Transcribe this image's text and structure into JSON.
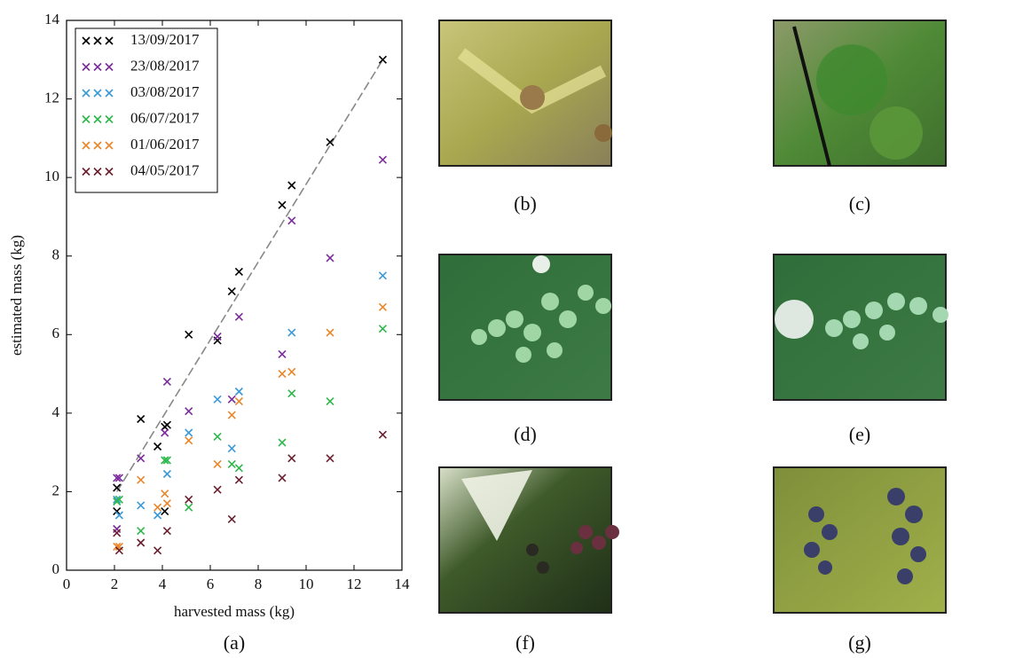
{
  "chart_data": {
    "type": "scatter",
    "xlabel": "harvested mass (kg)",
    "ylabel": "estimated mass (kg)",
    "xlim": [
      0,
      14
    ],
    "ylim": [
      0,
      14
    ],
    "xticks": [
      0,
      2,
      4,
      6,
      8,
      10,
      12,
      14
    ],
    "yticks": [
      0,
      2,
      4,
      6,
      8,
      10,
      12,
      14
    ],
    "legend": "upper left",
    "series": [
      {
        "name": "13/09/2017",
        "color": "#000000",
        "x": [
          2.1,
          2.1,
          3.1,
          3.8,
          4.1,
          4.2,
          4.1,
          5.1,
          6.3,
          6.9,
          7.2,
          9.0,
          9.4,
          11.0,
          13.2
        ],
        "values": [
          2.1,
          1.5,
          3.85,
          3.15,
          3.65,
          3.7,
          1.5,
          6.0,
          5.85,
          7.1,
          7.6,
          9.3,
          9.8,
          10.9,
          13.0
        ]
      },
      {
        "name": "23/08/2017",
        "color": "#7b2d9b",
        "x": [
          2.1,
          2.2,
          2.1,
          3.1,
          4.1,
          4.2,
          5.1,
          6.3,
          6.9,
          7.2,
          9.0,
          9.4,
          11.0,
          13.2
        ],
        "values": [
          2.35,
          2.35,
          1.05,
          2.85,
          3.5,
          4.8,
          4.05,
          5.95,
          4.35,
          6.45,
          5.5,
          8.9,
          7.95,
          10.45
        ]
      },
      {
        "name": "03/08/2017",
        "color": "#3a9ad9",
        "x": [
          2.1,
          2.2,
          3.1,
          3.8,
          4.2,
          5.1,
          6.3,
          6.9,
          7.2,
          9.4,
          13.2
        ],
        "values": [
          1.8,
          1.4,
          1.65,
          1.4,
          2.45,
          3.5,
          4.35,
          3.1,
          4.55,
          6.05,
          7.5
        ]
      },
      {
        "name": "06/07/2017",
        "color": "#2db84a",
        "x": [
          2.1,
          2.2,
          3.1,
          4.1,
          4.2,
          5.1,
          6.3,
          6.9,
          7.2,
          9.0,
          9.4,
          11.0,
          13.2
        ],
        "values": [
          1.75,
          1.8,
          1.0,
          2.8,
          2.8,
          1.6,
          3.4,
          2.7,
          2.6,
          3.25,
          4.5,
          4.3,
          6.15
        ]
      },
      {
        "name": "01/06/2017",
        "color": "#e8872a",
        "x": [
          2.1,
          2.2,
          3.1,
          3.8,
          4.1,
          4.2,
          5.1,
          6.3,
          6.9,
          7.2,
          9.0,
          9.4,
          11.0,
          13.2
        ],
        "values": [
          0.6,
          0.6,
          2.3,
          1.6,
          1.95,
          1.7,
          3.3,
          2.7,
          3.95,
          4.3,
          5.0,
          5.05,
          6.05,
          6.7
        ]
      },
      {
        "name": "04/05/2017",
        "color": "#6b1f2e",
        "x": [
          2.1,
          2.2,
          3.1,
          3.8,
          4.2,
          5.1,
          6.3,
          6.9,
          7.2,
          9.0,
          9.4,
          11.0,
          13.2
        ],
        "values": [
          0.95,
          0.5,
          0.7,
          0.5,
          1.0,
          1.8,
          2.05,
          1.3,
          2.3,
          2.35,
          2.85,
          2.85,
          3.45
        ]
      }
    ],
    "fit_line": {
      "color": "#888888",
      "x": [
        2.1,
        13.2
      ],
      "values": [
        2.0,
        13.0
      ]
    }
  },
  "panel_captions": [
    "(a)",
    "(b)",
    "(c)",
    "(d)",
    "(e)",
    "(f)",
    "(g)"
  ]
}
